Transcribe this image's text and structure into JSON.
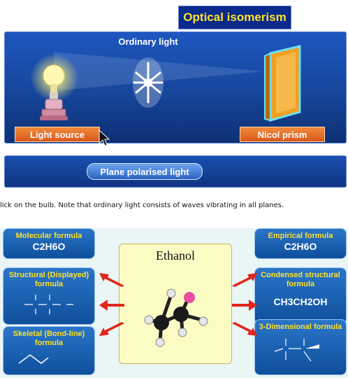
{
  "sim": {
    "title": "Optical isomerism",
    "ordinary_label": "Ordinary light",
    "light_source_btn": "Light source",
    "nicol_prism_btn": "Nicol prism",
    "plane_polarised_btn": "Plane polarised light"
  },
  "instruction": "lick on the bulb. Note that ordinary light consists of waves vibrating in all planes.",
  "ethanol": {
    "center_title": "Ethanol",
    "molecular": {
      "title": "Molecular formula",
      "value": "C2H6O"
    },
    "structural": {
      "title": "Structural (Displayed) formula"
    },
    "skeletal": {
      "title": "Skeletal (Bond-line) formula"
    },
    "empirical": {
      "title": "Empirical formula",
      "value": "C2H6O"
    },
    "condensed": {
      "title": "Condensed structural formula",
      "value": "CH3CH2OH"
    },
    "threed": {
      "title": "3-Dimensional formula"
    }
  },
  "colors": {
    "accent_yellow": "#ffe12a",
    "stage_blue": "#17489f",
    "button_orange": "#e46a24",
    "card_blue": "#1a63b5",
    "arrow_red": "#e2261c"
  }
}
